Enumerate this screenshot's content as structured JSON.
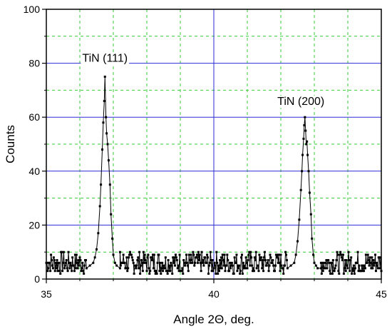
{
  "chart_data": {
    "type": "scatter",
    "xlabel": "Angle 2Θ, deg.",
    "ylabel": "Counts",
    "xlim": [
      35,
      45
    ],
    "ylim": [
      0,
      100
    ],
    "x_ticks": [
      35,
      40,
      45
    ],
    "y_ticks": [
      0,
      20,
      40,
      60,
      80,
      100
    ],
    "x_tick_labels": [
      "35",
      "40",
      "45"
    ],
    "y_tick_labels": [
      "0",
      "20",
      "40",
      "60",
      "80",
      "100"
    ],
    "grid": true,
    "legend": "none",
    "colors": {
      "major_grid": "#2b2bd6",
      "minor_grid": "#33cc33",
      "series": "#000000"
    },
    "annotations": [
      {
        "text": "TiN (111)",
        "x": 36.75,
        "y": 80.5
      },
      {
        "text": "TiN (200)",
        "x": 42.6,
        "y": 64.5
      }
    ],
    "series": [
      {
        "points": [
          [
            36.2,
            4
          ],
          [
            36.3,
            5
          ],
          [
            36.4,
            6
          ],
          [
            36.45,
            8
          ],
          [
            36.5,
            11
          ],
          [
            36.55,
            17
          ],
          [
            36.6,
            27
          ],
          [
            36.63,
            35
          ],
          [
            36.67,
            48
          ],
          [
            36.7,
            58
          ],
          [
            36.73,
            66
          ],
          [
            36.75,
            75
          ],
          [
            36.78,
            60
          ],
          [
            36.8,
            54
          ],
          [
            36.83,
            50
          ],
          [
            36.86,
            44
          ],
          [
            36.9,
            35
          ],
          [
            36.93,
            24
          ],
          [
            36.97,
            15
          ],
          [
            37.0,
            9
          ],
          [
            37.05,
            6
          ],
          [
            37.1,
            5
          ],
          [
            37.2,
            4
          ],
          [
            42.2,
            4
          ],
          [
            42.3,
            5
          ],
          [
            42.4,
            6
          ],
          [
            42.45,
            9
          ],
          [
            42.5,
            14
          ],
          [
            42.55,
            22
          ],
          [
            42.6,
            33
          ],
          [
            42.63,
            40
          ],
          [
            42.65,
            46
          ],
          [
            42.68,
            52
          ],
          [
            42.7,
            57
          ],
          [
            42.72,
            60
          ],
          [
            42.74,
            55
          ],
          [
            42.76,
            50
          ],
          [
            42.78,
            51
          ],
          [
            42.8,
            46
          ],
          [
            42.83,
            40
          ],
          [
            42.86,
            32
          ],
          [
            42.9,
            24
          ],
          [
            42.93,
            15
          ],
          [
            42.97,
            9
          ],
          [
            43.0,
            6
          ],
          [
            43.05,
            5
          ],
          [
            43.1,
            4
          ],
          [
            43.2,
            4
          ]
        ],
        "background": {
          "x_min": 35.0,
          "x_max": 45.0,
          "step": 0.02,
          "low": 2,
          "high": 10
        }
      }
    ]
  }
}
